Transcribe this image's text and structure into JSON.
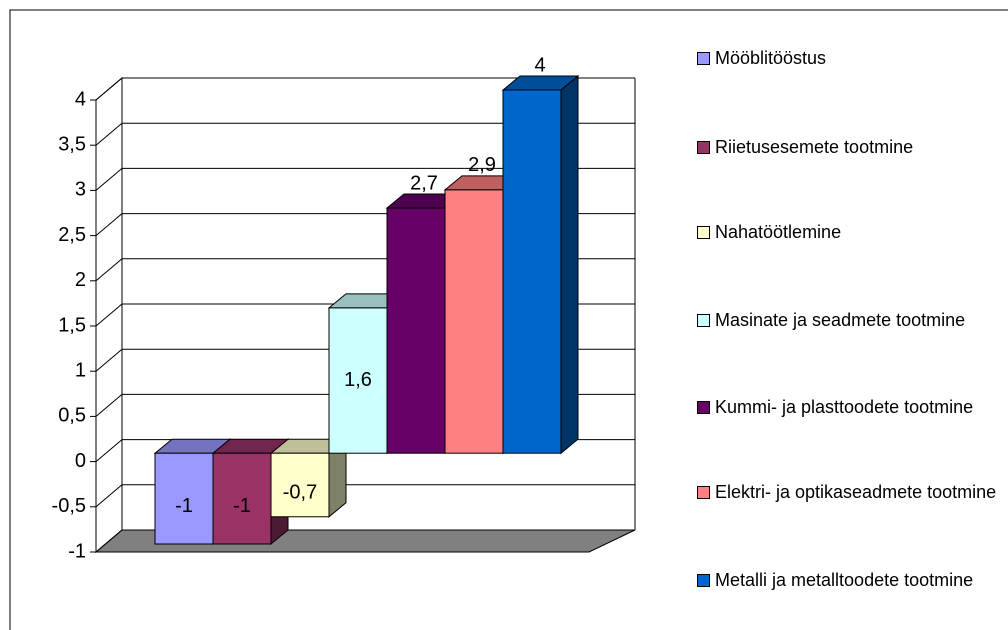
{
  "chart_data": {
    "type": "bar3d",
    "series": [
      {
        "name": "Mööblitööstus",
        "color": "#9999ff",
        "values": [
          -1
        ],
        "value_labels": [
          "-1"
        ]
      },
      {
        "name": "Riietusesemete tootmine",
        "color": "#993366",
        "values": [
          -1
        ],
        "value_labels": [
          "-1"
        ]
      },
      {
        "name": "Nahatöötlemine",
        "color": "#ffffcc",
        "values": [
          -0.7
        ],
        "value_labels": [
          "-0,7"
        ]
      },
      {
        "name": "Masinate ja seadmete tootmine",
        "color": "#ccffff",
        "values": [
          1.6
        ],
        "value_labels": [
          "1,6"
        ]
      },
      {
        "name": "Kummi- ja plasttoodete tootmine",
        "color": "#660066",
        "values": [
          2.7
        ],
        "value_labels": [
          "2,7"
        ]
      },
      {
        "name": "Elektri- ja optikaseadmete tootmine",
        "color": "#ff8080",
        "values": [
          2.9
        ],
        "value_labels": [
          "2,9"
        ]
      },
      {
        "name": "Metalli ja metalltoodete tootmine",
        "color": "#0066cc",
        "values": [
          4
        ],
        "value_labels": [
          "4"
        ]
      }
    ],
    "ylim": [
      -1,
      4
    ],
    "yticks": [
      -1,
      {
        "value": -0.5,
        "label": "-0,5"
      },
      0,
      {
        "value": 0.5,
        "label": "0,5"
      },
      1,
      {
        "value": 1.5,
        "label": "1,5"
      },
      2,
      {
        "value": 2.5,
        "label": "2,5"
      },
      3,
      {
        "value": 3.5,
        "label": "3,5"
      },
      4
    ],
    "grid": true,
    "legend": "right"
  }
}
